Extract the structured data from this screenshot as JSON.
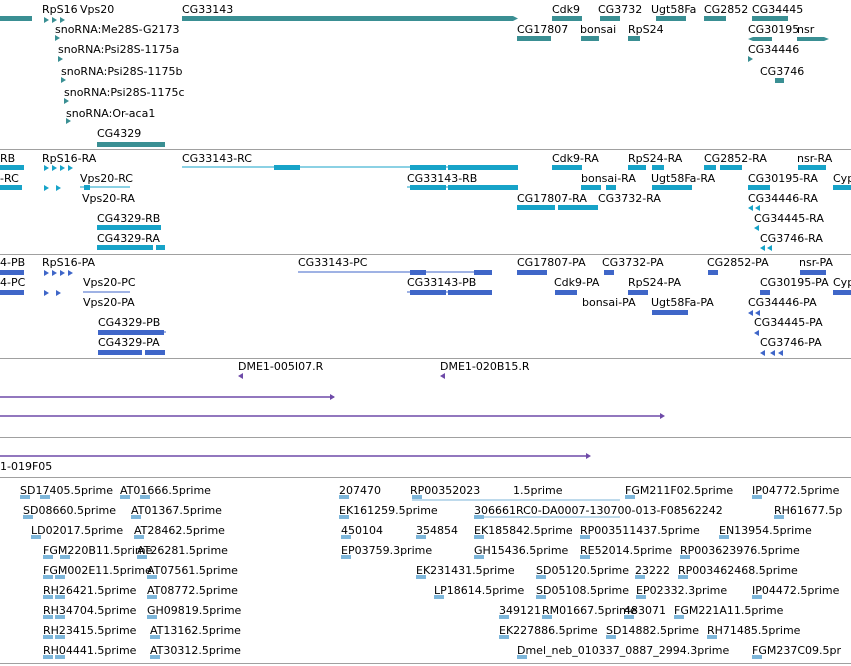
{
  "colors": {
    "gene": "#3a8f93",
    "transcript": "#17a3c8",
    "protein": "#3f66c8",
    "alignment": "#6e4aa8",
    "est": "#7db6da",
    "separator": "#a0a0a0"
  },
  "tracks": [
    {
      "name": "gene-track",
      "features": [
        {
          "label": "RpS16"
        },
        {
          "label": "Vps20"
        },
        {
          "label": "CG33143"
        },
        {
          "label": "Cdk9"
        },
        {
          "label": "CG3732"
        },
        {
          "label": "Ugt58Fa"
        },
        {
          "label": "CG2852"
        },
        {
          "label": "CG34445"
        },
        {
          "label": "snoRNA:Me28S-G2173"
        },
        {
          "label": "CG17807"
        },
        {
          "label": "bonsai"
        },
        {
          "label": "RpS24"
        },
        {
          "label": "CG30195"
        },
        {
          "label": "nsr"
        },
        {
          "label": "snoRNA:Psi28S-1175a"
        },
        {
          "label": "CG34446"
        },
        {
          "label": "snoRNA:Psi28S-1175b"
        },
        {
          "label": "CG3746"
        },
        {
          "label": "snoRNA:Psi28S-1175c"
        },
        {
          "label": "snoRNA:Or-aca1"
        },
        {
          "label": "CG4329"
        }
      ]
    },
    {
      "name": "transcript-track",
      "features": [
        {
          "label": "RB"
        },
        {
          "label": "RpS16-RA"
        },
        {
          "label": "CG33143-RC"
        },
        {
          "label": "Cdk9-RA"
        },
        {
          "label": "RpS24-RA"
        },
        {
          "label": "CG2852-RA"
        },
        {
          "label": "nsr-RA"
        },
        {
          "label": "-RC"
        },
        {
          "label": "Vps20-RC"
        },
        {
          "label": "CG33143-RB"
        },
        {
          "label": "bonsai-RA"
        },
        {
          "label": "Ugt58Fa-RA"
        },
        {
          "label": "CG30195-RA"
        },
        {
          "label": "Cyp"
        },
        {
          "label": "Vps20-RA"
        },
        {
          "label": "CG17807-RA"
        },
        {
          "label": "CG3732-RA"
        },
        {
          "label": "CG34446-RA"
        },
        {
          "label": "CG4329-RB"
        },
        {
          "label": "CG34445-RA"
        },
        {
          "label": "CG4329-RA"
        },
        {
          "label": "CG3746-RA"
        }
      ]
    },
    {
      "name": "protein-track",
      "features": [
        {
          "label": "4-PB"
        },
        {
          "label": "RpS16-PA"
        },
        {
          "label": "CG33143-PC"
        },
        {
          "label": "CG17807-PA"
        },
        {
          "label": "CG3732-PA"
        },
        {
          "label": "CG2852-PA"
        },
        {
          "label": "nsr-PA"
        },
        {
          "label": "4-PC"
        },
        {
          "label": "Vps20-PC"
        },
        {
          "label": "CG33143-PB"
        },
        {
          "label": "Cdk9-PA"
        },
        {
          "label": "RpS24-PA"
        },
        {
          "label": "CG30195-PA"
        },
        {
          "label": "Cyp"
        },
        {
          "label": "Vps20-PA"
        },
        {
          "label": "bonsai-PA"
        },
        {
          "label": "Ugt58Fa-PA"
        },
        {
          "label": "CG34446-PA"
        },
        {
          "label": "CG4329-PB"
        },
        {
          "label": "CG34445-PA"
        },
        {
          "label": "CG4329-PA"
        },
        {
          "label": "CG3746-PA"
        }
      ]
    },
    {
      "name": "clone-track",
      "features": [
        {
          "label": "DME1-005I07.R"
        },
        {
          "label": "DME1-020B15.R"
        },
        {
          "label": "1-019F05"
        }
      ]
    },
    {
      "name": "est-track",
      "features": [
        {
          "label": "SD17405.5prime"
        },
        {
          "label": "AT01666.5prime"
        },
        {
          "label": "207470"
        },
        {
          "label": "RP00352023"
        },
        {
          "label": "1.5prime"
        },
        {
          "label": "FGM211F02.5prime"
        },
        {
          "label": "IP04772.5prime"
        },
        {
          "label": "SD08660.5prime"
        },
        {
          "label": "AT01367.5prime"
        },
        {
          "label": "EK161259.5prime"
        },
        {
          "label": "306661RC0-DA0007-130700-013-F08562242"
        },
        {
          "label": "RH61677.5p"
        },
        {
          "label": "LD02017.5prime"
        },
        {
          "label": "AT28462.5prime"
        },
        {
          "label": "450104"
        },
        {
          "label": "354854"
        },
        {
          "label": "EK185842.5prime"
        },
        {
          "label": "RP003511437.5prime"
        },
        {
          "label": "EN13954.5prime"
        },
        {
          "label": "FGM220B11.5prime"
        },
        {
          "label": "AT26281.5prime"
        },
        {
          "label": "EP03759.3prime"
        },
        {
          "label": "GH15436.5prime"
        },
        {
          "label": "RE52014.5prime"
        },
        {
          "label": "RP003623976.5prime"
        },
        {
          "label": "FGM002E11.5prime"
        },
        {
          "label": "AT07561.5prime"
        },
        {
          "label": "EK231431.5prime"
        },
        {
          "label": "SD05120.5prime"
        },
        {
          "label": "23222"
        },
        {
          "label": "RP003462468.5prime"
        },
        {
          "label": "RH26421.5prime"
        },
        {
          "label": "AT08772.5prime"
        },
        {
          "label": "LP18614.5prime"
        },
        {
          "label": "SD05108.5prime"
        },
        {
          "label": "EP02332.3prime"
        },
        {
          "label": "IP04472.5prime"
        },
        {
          "label": "RH34704.5prime"
        },
        {
          "label": "GH09819.5prime"
        },
        {
          "label": "349121"
        },
        {
          "label": "RM01667.5prime"
        },
        {
          "label": "483071"
        },
        {
          "label": "FGM221A11.5prime"
        },
        {
          "label": "RH23415.5prime"
        },
        {
          "label": "AT13162.5prime"
        },
        {
          "label": "EK227886.5prime"
        },
        {
          "label": "SD14882.5prime"
        },
        {
          "label": "RH71485.5prime"
        },
        {
          "label": "RH04441.5prime"
        },
        {
          "label": "AT30312.5prime"
        },
        {
          "label": "Dmel_neb_010337_0887_2994.3prime"
        },
        {
          "label": "FGM237C09.5pr"
        }
      ]
    }
  ]
}
